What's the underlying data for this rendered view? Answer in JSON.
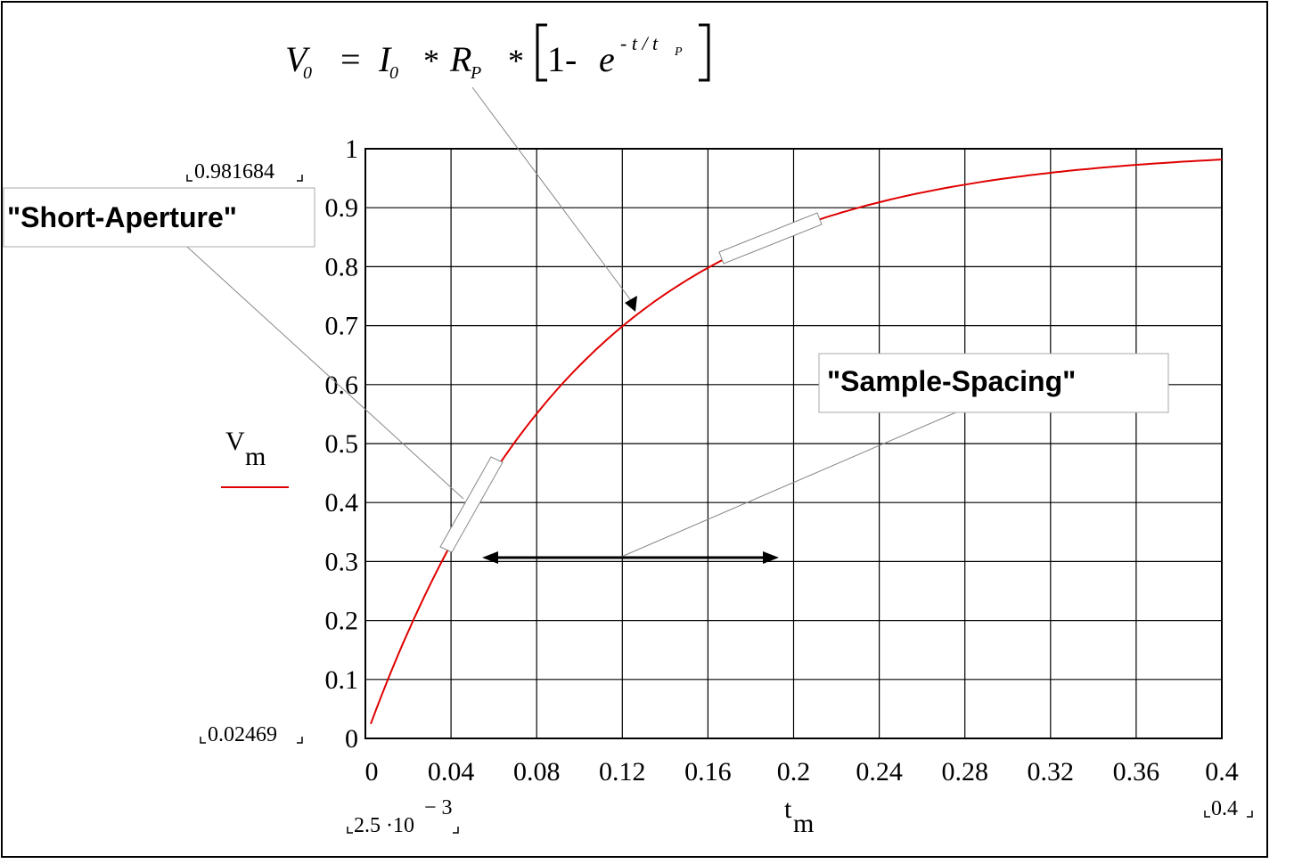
{
  "equation": {
    "lhs": "V",
    "lhs_sub": "0",
    "eq_sign": "=",
    "i": "I",
    "i_sub": "0",
    "times1": "*",
    "r": "R",
    "r_sub": "P",
    "times2": "*",
    "one_minus": "1-",
    "e": "e",
    "exp": "- t / t",
    "exp_sub": "P"
  },
  "callouts": {
    "short_aperture": "\"Short-Aperture\"",
    "sample_spacing": "\"Sample-Spacing\""
  },
  "range_marks": {
    "ymax": "0.981684",
    "ymin": "0.02469",
    "xmin_base": "2.5 ·10",
    "xmin_exp": "− 3",
    "xmax": "0.4"
  },
  "legend": {
    "label": "V",
    "label_sub": "m",
    "color": "#e00000"
  },
  "chart_data": {
    "type": "line",
    "xlabel": "t",
    "xlabel_sub": "m",
    "ylabel": "V",
    "ylabel_sub": "m",
    "xlim": [
      0,
      0.4
    ],
    "ylim": [
      0,
      1
    ],
    "x_ticks": [
      "0",
      "0.04",
      "0.08",
      "0.12",
      "0.16",
      "0.2",
      "0.24",
      "0.28",
      "0.32",
      "0.36",
      "0.4"
    ],
    "y_ticks": [
      "0",
      "0.1",
      "0.2",
      "0.3",
      "0.4",
      "0.5",
      "0.6",
      "0.7",
      "0.8",
      "0.9",
      "1"
    ],
    "grid": true,
    "series": [
      {
        "name": "V m",
        "color": "#e00000",
        "time_constant": 0.1,
        "x_start": 0.0025,
        "x_end": 0.4,
        "x_step": 0.0025,
        "y_at_start": 0.02469,
        "y_at_end": 0.981684
      }
    ]
  }
}
